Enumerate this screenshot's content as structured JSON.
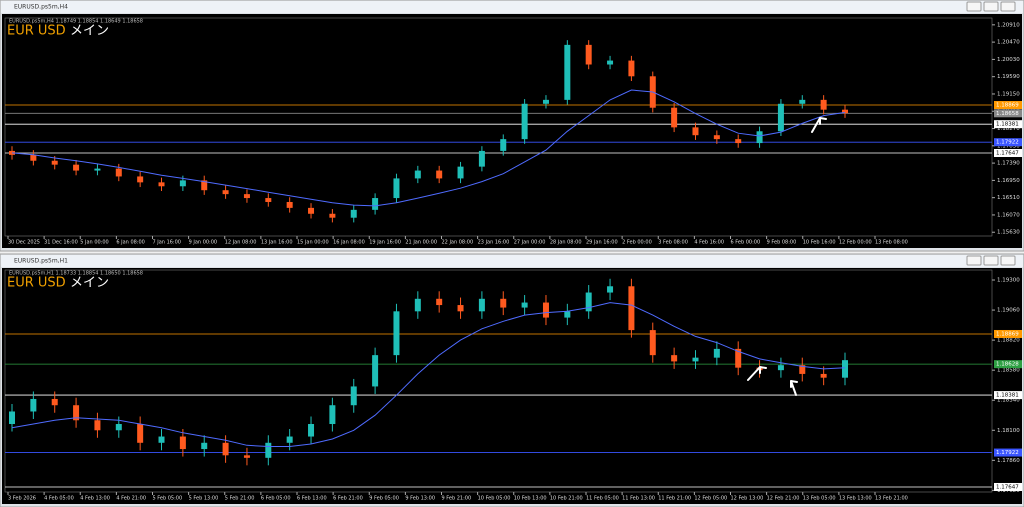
{
  "windows": [
    {
      "title": "EURUSD.ps5m,H4",
      "info": "EURUSD.ps5m,H4 1.18749 1.18854 1.18649 1.18658",
      "symbol": "EUR USD",
      "label": "メイン",
      "timeframe": "H4",
      "timeframe_color": "#f0a000",
      "chart_data": {
        "type": "candlestick",
        "bull_color": "#1fbfb8",
        "bear_color": "#ff5a1f",
        "ma_color": "#4f6bff",
        "ylim": [
          1.15534,
          1.21084
        ],
        "yticks": [
          {
            "value": 1.1563,
            "label": "1.15630"
          },
          {
            "value": 1.1607,
            "label": "1.16070"
          },
          {
            "value": 1.1651,
            "label": "1.16510"
          },
          {
            "value": 1.1695,
            "label": "1.16950"
          },
          {
            "value": 1.1739,
            "label": "1.17390"
          },
          {
            "value": 1.1783,
            "label": "1.17830"
          },
          {
            "value": 1.1827,
            "label": "1.18270"
          },
          {
            "value": 1.1871,
            "label": "1.18710"
          },
          {
            "value": 1.1915,
            "label": "1.19150"
          },
          {
            "value": 1.1959,
            "label": "1.19590"
          },
          {
            "value": 1.2003,
            "label": "1.20030"
          },
          {
            "value": 1.2047,
            "label": "1.20470"
          },
          {
            "value": 1.2091,
            "label": "1.20910"
          }
        ],
        "xlabels": [
          "30 Dec 2025",
          "31 Dec 16:00",
          "5 Jan 00:00",
          "6 Jan 08:00",
          "7 Jan 16:00",
          "9 Jan 00:00",
          "12 Jan 08:00",
          "13 Jan 16:00",
          "15 Jan 00:00",
          "16 Jan 08:00",
          "19 Jan 16:00",
          "21 Jan 00:00",
          "22 Jan 08:00",
          "23 Jan 16:00",
          "27 Jan 00:00",
          "28 Jan 08:00",
          "29 Jan 16:00",
          "2 Feb 00:00",
          "3 Feb 08:00",
          "4 Feb 16:00",
          "6 Feb 00:00",
          "9 Feb 08:00",
          "10 Feb 16:00",
          "12 Feb 00:00",
          "13 Feb 08:00"
        ],
        "price_lines": [
          {
            "value": 1.18869,
            "color": "#ff9900"
          },
          {
            "value": 1.18658,
            "color": "#888888"
          },
          {
            "value": 1.18381,
            "color": "#ffffff"
          },
          {
            "value": 1.17922,
            "color": "#3a55ff"
          },
          {
            "value": 1.17647,
            "color": "#ffffff"
          }
        ],
        "open": [
          1.177,
          1.176,
          1.1745,
          1.1735,
          1.172,
          1.1725,
          1.1705,
          1.169,
          1.168,
          1.1695,
          1.167,
          1.166,
          1.165,
          1.164,
          1.1625,
          1.161,
          1.16,
          1.162,
          1.165,
          1.17,
          1.172,
          1.17,
          1.173,
          1.177,
          1.18,
          1.189,
          1.19,
          1.204,
          1.199,
          1.2,
          1.196,
          1.188,
          1.183,
          1.181,
          1.18,
          1.179,
          1.182,
          1.189,
          1.19,
          1.1875
        ],
        "high": [
          1.1782,
          1.1772,
          1.1757,
          1.1747,
          1.1737,
          1.1737,
          1.1717,
          1.1702,
          1.1707,
          1.1707,
          1.1682,
          1.1672,
          1.1662,
          1.1652,
          1.1637,
          1.1622,
          1.1632,
          1.1662,
          1.1712,
          1.1732,
          1.1732,
          1.1742,
          1.1782,
          1.1812,
          1.1902,
          1.1912,
          1.2052,
          1.2052,
          1.2012,
          1.2012,
          1.1972,
          1.1892,
          1.1842,
          1.1822,
          1.1812,
          1.1832,
          1.1902,
          1.1912,
          1.1912,
          1.1887
        ],
        "low": [
          1.1748,
          1.1733,
          1.1723,
          1.1708,
          1.1708,
          1.1693,
          1.1678,
          1.1668,
          1.1668,
          1.1658,
          1.1648,
          1.1638,
          1.1628,
          1.1613,
          1.1598,
          1.1588,
          1.1588,
          1.1608,
          1.1638,
          1.1688,
          1.1688,
          1.1688,
          1.1718,
          1.1758,
          1.1788,
          1.1878,
          1.1888,
          1.1978,
          1.1978,
          1.1948,
          1.1868,
          1.1818,
          1.1798,
          1.1788,
          1.1778,
          1.1778,
          1.1808,
          1.1878,
          1.1863,
          1.1854
        ],
        "close": [
          1.176,
          1.1745,
          1.1735,
          1.172,
          1.1725,
          1.1705,
          1.169,
          1.168,
          1.1695,
          1.167,
          1.166,
          1.165,
          1.164,
          1.1625,
          1.161,
          1.16,
          1.162,
          1.165,
          1.17,
          1.172,
          1.17,
          1.173,
          1.177,
          1.18,
          1.189,
          1.19,
          1.204,
          1.199,
          1.2,
          1.196,
          1.188,
          1.183,
          1.181,
          1.18,
          1.179,
          1.182,
          1.189,
          1.19,
          1.1875,
          1.1866
        ],
        "ma": [
          1.1765,
          1.176,
          1.1752,
          1.1745,
          1.1737,
          1.1728,
          1.1718,
          1.1708,
          1.17,
          1.1692,
          1.1683,
          1.1674,
          1.1665,
          1.1656,
          1.1647,
          1.1638,
          1.1632,
          1.163,
          1.1638,
          1.165,
          1.1662,
          1.1675,
          1.1692,
          1.1712,
          1.1742,
          1.1772,
          1.182,
          1.186,
          1.19,
          1.1925,
          1.192,
          1.1895,
          1.1865,
          1.1838,
          1.1815,
          1.1808,
          1.1818,
          1.184,
          1.186,
          1.1868
        ]
      }
    },
    {
      "title": "EURUSD.ps5m,H1",
      "info": "EURUSD.ps5m,H1 1.18733 1.18854 1.18650 1.18658",
      "symbol": "EUR USD",
      "label": "メイン",
      "timeframe": "H1",
      "timeframe_color": "#3cb043",
      "chart_data": {
        "type": "candlestick",
        "bull_color": "#1fbfb8",
        "bear_color": "#ff5a1f",
        "ma_color": "#4f6bff",
        "ylim": [
          1.17607,
          1.1938
        ],
        "yticks": [
          {
            "value": 1.1762,
            "label": "1.17620"
          },
          {
            "value": 1.1786,
            "label": "1.17860"
          },
          {
            "value": 1.181,
            "label": "1.18100"
          },
          {
            "value": 1.1834,
            "label": "1.18340"
          },
          {
            "value": 1.1858,
            "label": "1.18580"
          },
          {
            "value": 1.1882,
            "label": "1.18820"
          },
          {
            "value": 1.1906,
            "label": "1.19060"
          },
          {
            "value": 1.193,
            "label": "1.19300"
          }
        ],
        "xlabels": [
          "3 Feb 2026",
          "4 Feb 05:00",
          "4 Feb 13:00",
          "4 Feb 21:00",
          "5 Feb 05:00",
          "5 Feb 13:00",
          "5 Feb 21:00",
          "6 Feb 05:00",
          "6 Feb 13:00",
          "6 Feb 21:00",
          "9 Feb 05:00",
          "9 Feb 13:00",
          "9 Feb 21:00",
          "10 Feb 05:00",
          "10 Feb 13:00",
          "10 Feb 21:00",
          "11 Feb 05:00",
          "11 Feb 13:00",
          "11 Feb 21:00",
          "12 Feb 05:00",
          "12 Feb 13:00",
          "12 Feb 21:00",
          "13 Feb 05:00",
          "13 Feb 13:00",
          "13 Feb 21:00"
        ],
        "price_lines": [
          {
            "value": 1.18869,
            "color": "#ff9900"
          },
          {
            "value": 1.18628,
            "color": "#2ea043"
          },
          {
            "value": 1.18381,
            "color": "#ffffff"
          },
          {
            "value": 1.17922,
            "color": "#3a55ff"
          },
          {
            "value": 1.17647,
            "color": "#ffffff"
          }
        ],
        "open": [
          1.1815,
          1.1825,
          1.1835,
          1.183,
          1.1818,
          1.181,
          1.1815,
          1.18,
          1.1805,
          1.1795,
          1.18,
          1.179,
          1.1788,
          1.18,
          1.1805,
          1.1815,
          1.183,
          1.1845,
          1.187,
          1.1905,
          1.1915,
          1.191,
          1.1905,
          1.1915,
          1.1908,
          1.1912,
          1.19,
          1.1905,
          1.192,
          1.1925,
          1.189,
          1.187,
          1.1865,
          1.1868,
          1.1875,
          1.186,
          1.1858,
          1.1862,
          1.1855,
          1.1852
        ],
        "high": [
          1.1831,
          1.1841,
          1.1841,
          1.1836,
          1.1824,
          1.1821,
          1.1821,
          1.1811,
          1.1811,
          1.1806,
          1.1806,
          1.1796,
          1.1806,
          1.1811,
          1.1821,
          1.1836,
          1.1851,
          1.1876,
          1.1911,
          1.1921,
          1.1921,
          1.1916,
          1.1921,
          1.1921,
          1.1918,
          1.1918,
          1.1911,
          1.1926,
          1.1931,
          1.1931,
          1.1896,
          1.1876,
          1.1874,
          1.1881,
          1.1881,
          1.1866,
          1.1868,
          1.1868,
          1.1861,
          1.1872
        ],
        "low": [
          1.1809,
          1.1819,
          1.1824,
          1.1812,
          1.1804,
          1.1804,
          1.1794,
          1.1794,
          1.1789,
          1.1789,
          1.1784,
          1.1782,
          1.1782,
          1.1794,
          1.1799,
          1.1809,
          1.1824,
          1.1839,
          1.1864,
          1.1899,
          1.1904,
          1.1899,
          1.1899,
          1.1902,
          1.1902,
          1.1894,
          1.1894,
          1.1899,
          1.1914,
          1.1884,
          1.1864,
          1.1859,
          1.1859,
          1.1862,
          1.1854,
          1.1852,
          1.1852,
          1.1849,
          1.1846,
          1.1846
        ],
        "close": [
          1.1825,
          1.1835,
          1.183,
          1.1818,
          1.181,
          1.1815,
          1.18,
          1.1805,
          1.1795,
          1.18,
          1.179,
          1.1788,
          1.18,
          1.1805,
          1.1815,
          1.183,
          1.1845,
          1.187,
          1.1905,
          1.1915,
          1.191,
          1.1905,
          1.1915,
          1.1908,
          1.1912,
          1.19,
          1.1905,
          1.192,
          1.1925,
          1.189,
          1.187,
          1.1865,
          1.1868,
          1.1875,
          1.186,
          1.1858,
          1.1862,
          1.1855,
          1.1852,
          1.1866
        ],
        "ma": [
          1.1812,
          1.1815,
          1.1818,
          1.182,
          1.1819,
          1.1818,
          1.1815,
          1.1812,
          1.1808,
          1.1805,
          1.1802,
          1.1798,
          1.1797,
          1.1797,
          1.1799,
          1.1803,
          1.181,
          1.1822,
          1.1838,
          1.1855,
          1.187,
          1.1882,
          1.1891,
          1.1897,
          1.1902,
          1.1904,
          1.1905,
          1.1908,
          1.1912,
          1.191,
          1.1902,
          1.1893,
          1.1885,
          1.188,
          1.1873,
          1.1867,
          1.1864,
          1.1861,
          1.1859,
          1.186
        ]
      }
    }
  ]
}
